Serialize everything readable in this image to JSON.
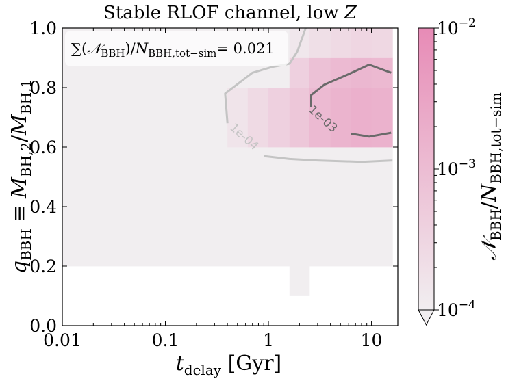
{
  "chart_data": {
    "type": "heatmap",
    "title": "Stable RLOF channel,  low Z",
    "xlabel": "t_delay [Gyr]",
    "ylabel": "q_BBH ≡ M_BH,2/M_BH,1",
    "x_scale": "log",
    "xlim": [
      0.01,
      18
    ],
    "ylim": [
      0.0,
      1.0
    ],
    "x_ticks": [
      {
        "value": 0.01,
        "label": "0.01"
      },
      {
        "value": 0.1,
        "label": "0.1"
      },
      {
        "value": 1,
        "label": "1"
      },
      {
        "value": 10,
        "label": "10"
      }
    ],
    "y_ticks": [
      {
        "value": 0.0,
        "label": "0.0"
      },
      {
        "value": 0.2,
        "label": "0.2"
      },
      {
        "value": 0.4,
        "label": "0.4"
      },
      {
        "value": 0.6,
        "label": "0.6"
      },
      {
        "value": 0.8,
        "label": "0.8"
      },
      {
        "value": 1.0,
        "label": "1.0"
      }
    ],
    "annotation": "∑(N_BBH)/N_BBH,tot−sim= 0.021",
    "colorbar": {
      "label": "N_BBH/N_BBH,tot−sim",
      "scale": "log",
      "range": [
        0.0001,
        0.01
      ],
      "ticks": [
        {
          "value": 0.0001,
          "label": "10^−4"
        },
        {
          "value": 0.001,
          "label": "10^−3"
        },
        {
          "value": 0.01,
          "label": "10^−2"
        }
      ],
      "color_low": "#f1eef0",
      "color_high": "#e78bb6",
      "extend": "min"
    },
    "cells": [
      {
        "x0": 0.01,
        "x1": 16,
        "y0": 0.2,
        "y1": 1.0,
        "value": 0.0001
      },
      {
        "x0": 1.6,
        "x1": 2.5,
        "y0": 0.1,
        "y1": 0.2,
        "value": 0.0001
      },
      {
        "x0": 0.4,
        "x1": 0.63,
        "y0": 0.6,
        "y1": 0.8,
        "value": 0.00016
      },
      {
        "x0": 0.63,
        "x1": 1.0,
        "y0": 0.6,
        "y1": 0.8,
        "value": 0.00025
      },
      {
        "x0": 1.0,
        "x1": 1.6,
        "y0": 0.6,
        "y1": 0.8,
        "value": 0.0004
      },
      {
        "x0": 1.6,
        "x1": 2.5,
        "y0": 0.6,
        "y1": 0.8,
        "value": 0.0006
      },
      {
        "x0": 2.5,
        "x1": 4.0,
        "y0": 0.6,
        "y1": 0.8,
        "value": 0.0011
      },
      {
        "x0": 4.0,
        "x1": 6.3,
        "y0": 0.6,
        "y1": 0.8,
        "value": 0.0015
      },
      {
        "x0": 6.3,
        "x1": 10.0,
        "y0": 0.6,
        "y1": 0.8,
        "value": 0.0018
      },
      {
        "x0": 10.0,
        "x1": 16.0,
        "y0": 0.6,
        "y1": 0.8,
        "value": 0.0016
      },
      {
        "x0": 1.6,
        "x1": 2.5,
        "y0": 0.8,
        "y1": 0.9,
        "value": 0.0004
      },
      {
        "x0": 2.5,
        "x1": 4.0,
        "y0": 0.8,
        "y1": 0.9,
        "value": 0.0008
      },
      {
        "x0": 4.0,
        "x1": 6.3,
        "y0": 0.8,
        "y1": 0.9,
        "value": 0.0011
      },
      {
        "x0": 6.3,
        "x1": 10.0,
        "y0": 0.8,
        "y1": 0.9,
        "value": 0.0013
      },
      {
        "x0": 10.0,
        "x1": 16.0,
        "y0": 0.8,
        "y1": 0.9,
        "value": 0.0012
      },
      {
        "x0": 1.6,
        "x1": 2.5,
        "y0": 0.9,
        "y1": 1.0,
        "value": 0.00014
      },
      {
        "x0": 2.5,
        "x1": 4.0,
        "y0": 0.9,
        "y1": 1.0,
        "value": 0.0002
      },
      {
        "x0": 4.0,
        "x1": 6.3,
        "y0": 0.9,
        "y1": 1.0,
        "value": 0.00025
      },
      {
        "x0": 6.3,
        "x1": 10.0,
        "y0": 0.9,
        "y1": 1.0,
        "value": 0.0003
      },
      {
        "x0": 10.0,
        "x1": 16.0,
        "y0": 0.9,
        "y1": 1.0,
        "value": 0.00028
      }
    ],
    "contours": [
      {
        "level_label": "1e-04",
        "color": "#c4c4c4",
        "points": [
          [
            2.3,
            1.0
          ],
          [
            1.9,
            0.92
          ],
          [
            1.6,
            0.88
          ],
          [
            1.1,
            0.87
          ],
          [
            0.7,
            0.85
          ],
          [
            0.38,
            0.78
          ],
          [
            0.4,
            0.68
          ]
        ],
        "points_b": [
          [
            0.9,
            0.57
          ],
          [
            1.6,
            0.56
          ],
          [
            3.0,
            0.555
          ],
          [
            8.0,
            0.55
          ],
          [
            16.0,
            0.555
          ]
        ],
        "label_at": [
          0.55,
          0.625
        ]
      },
      {
        "level_label": "1e-03",
        "color": "#6a6a6a",
        "points": [
          [
            2.6,
            0.735
          ],
          [
            2.6,
            0.775
          ],
          [
            3.5,
            0.81
          ],
          [
            6.0,
            0.845
          ],
          [
            9.5,
            0.877
          ],
          [
            15.5,
            0.85
          ]
        ],
        "points_b": [
          [
            6.3,
            0.645
          ],
          [
            9.5,
            0.635
          ],
          [
            15.5,
            0.648
          ]
        ],
        "label_at": [
          3.2,
          0.685
        ]
      }
    ]
  }
}
